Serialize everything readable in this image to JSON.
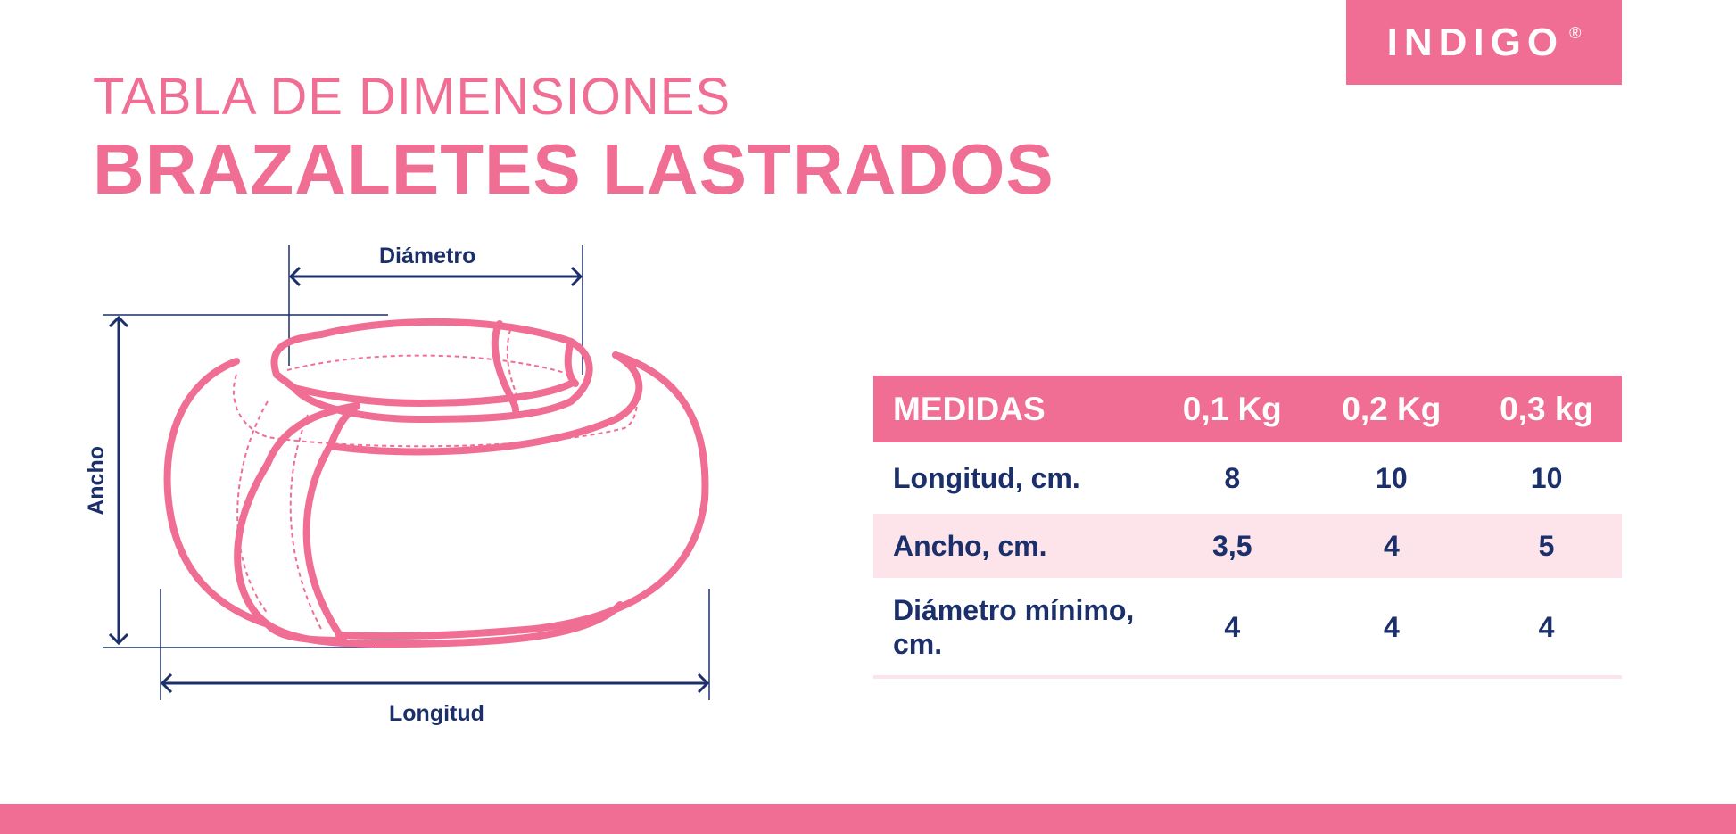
{
  "brand": {
    "logo_text": "INDIGO",
    "registered": "®",
    "color": "#F06E93"
  },
  "title": {
    "line1": "TABLA DE DIMENSIONES",
    "line2": "BRAZALETES LASTRADOS"
  },
  "diagram": {
    "diameter_label": "Diámetro",
    "width_label": "Ancho",
    "length_label": "Longitud"
  },
  "table": {
    "headers": [
      "MEDIDAS",
      "0,1 Kg",
      "0,2 Kg",
      "0,3 kg"
    ],
    "rows": [
      {
        "label": "Longitud, cm.",
        "values": [
          "8",
          "10",
          "10"
        ]
      },
      {
        "label": "Ancho, cm.",
        "values": [
          "3,5",
          "4",
          "5"
        ]
      },
      {
        "label": "Diámetro mínimo, cm.",
        "values": [
          "4",
          "4",
          "4"
        ]
      }
    ]
  },
  "colors": {
    "accent": "#F06E93",
    "text": "#1B2F6B",
    "row_alt": "#FCE4EA"
  }
}
